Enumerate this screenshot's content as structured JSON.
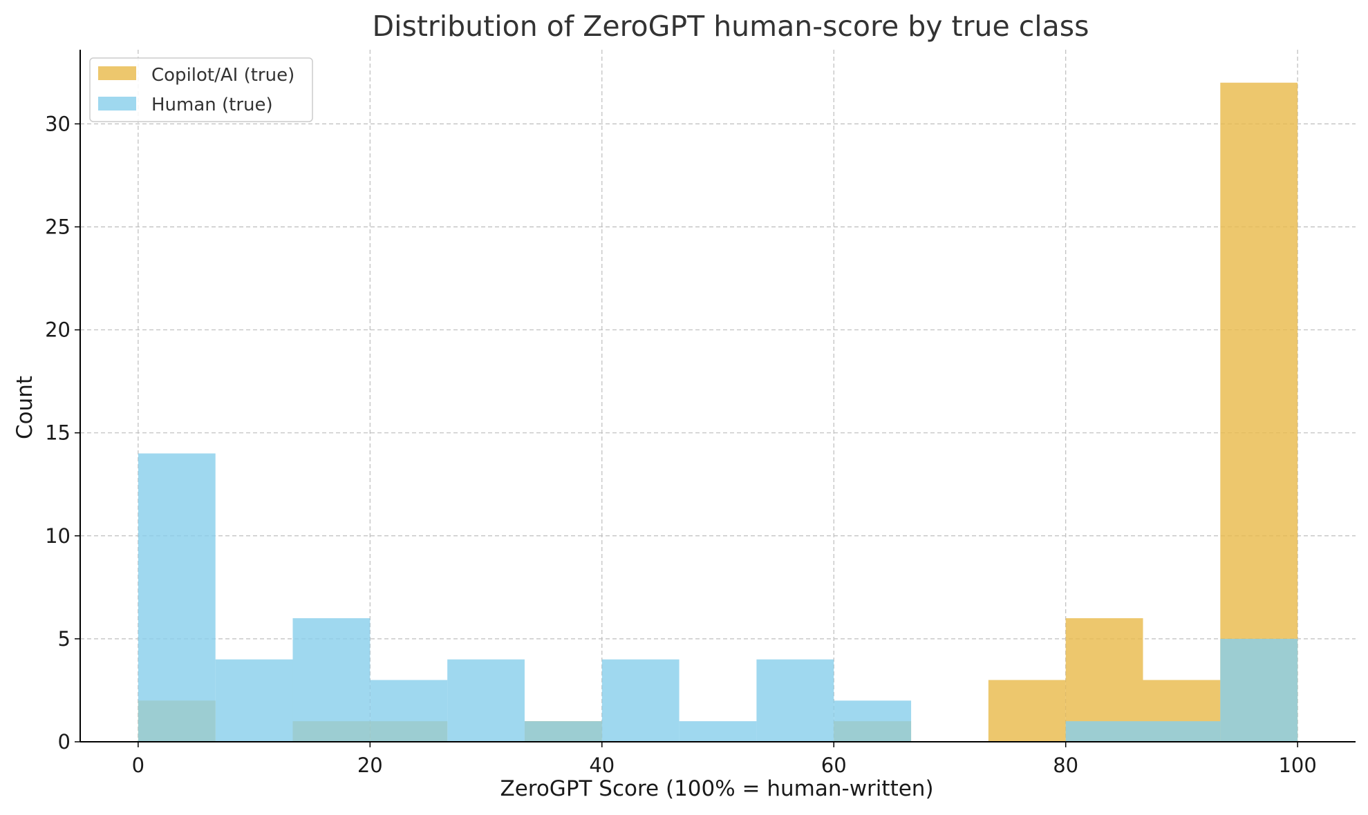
{
  "chart_data": {
    "type": "bar",
    "title": "Distribution of ZeroGPT human-score by true class",
    "xlabel": "ZeroGPT Score (100% = human-written)",
    "ylabel": "Count",
    "xlim": [
      -5,
      105
    ],
    "ylim": [
      0,
      33.6
    ],
    "xticks": [
      0,
      20,
      40,
      60,
      80,
      100
    ],
    "yticks": [
      0,
      5,
      10,
      15,
      20,
      25,
      30
    ],
    "grid": true,
    "legend_position": "top-left",
    "bin_edges": [
      0,
      6.667,
      13.333,
      20,
      26.667,
      33.333,
      40,
      46.667,
      53.333,
      60,
      66.667,
      73.333,
      80,
      86.667,
      93.333,
      100
    ],
    "series": [
      {
        "name": "Copilot/AI (true)",
        "color": "#e8b949",
        "values": [
          2,
          0,
          1,
          1,
          0,
          1,
          0,
          0,
          0,
          1,
          0,
          3,
          6,
          3,
          32
        ]
      },
      {
        "name": "Human (true)",
        "color": "#87ceeb",
        "values": [
          14,
          4,
          6,
          3,
          4,
          1,
          4,
          1,
          4,
          2,
          0,
          0,
          1,
          1,
          5
        ]
      }
    ]
  }
}
